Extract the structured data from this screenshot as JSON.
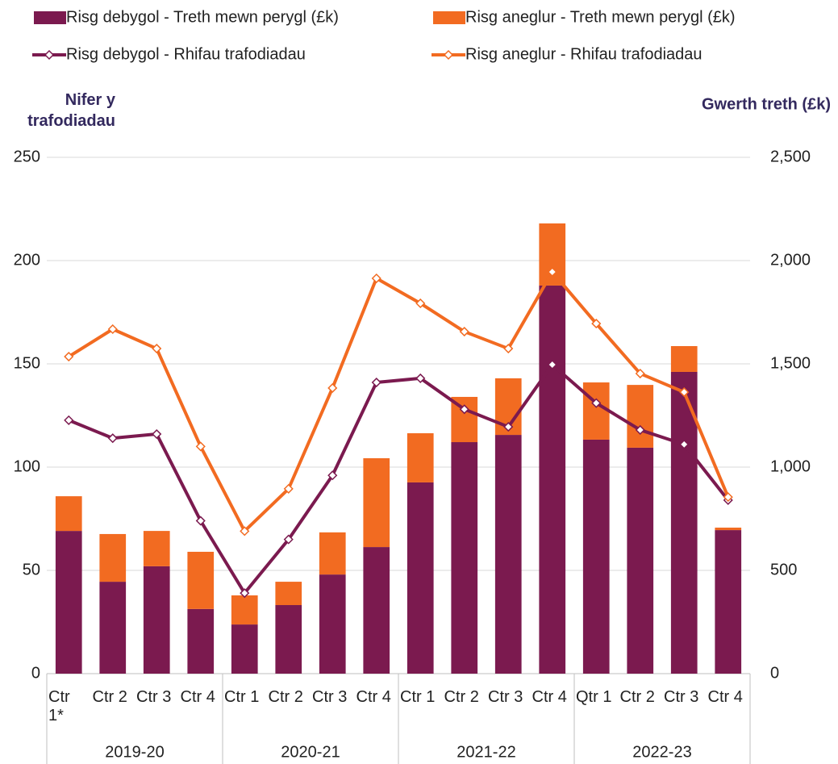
{
  "chart_data": {
    "type": "combo",
    "y_title": "Nifer y trafodiadau",
    "y2_title": "Gwerth treth (£k)",
    "groups": [
      {
        "name": "2019-20",
        "categories": [
          "Ctr 1*",
          "Ctr 2",
          "Ctr 3",
          "Ctr 4"
        ]
      },
      {
        "name": "2020-21",
        "categories": [
          "Ctr 1",
          "Ctr 2",
          "Ctr 3",
          "Ctr 4"
        ]
      },
      {
        "name": "2021-22",
        "categories": [
          "Ctr 1",
          "Ctr 2",
          "Ctr 3",
          "Ctr 4"
        ]
      },
      {
        "name": "2022-23",
        "categories": [
          "Qtr 1",
          "Ctr 2",
          "Ctr 3",
          "Ctr 4"
        ]
      }
    ],
    "series": [
      {
        "name": "Risg debygol - Treth mewn perygl (£k)",
        "type": "bar",
        "axis": "y2",
        "color": "#7b1a4f",
        "values": [
          691,
          445,
          520,
          313,
          238,
          332,
          480,
          613,
          926,
          1121,
          1156,
          1879,
          1133,
          1094,
          1461,
          695
        ]
      },
      {
        "name": "Risg aneglur - Treth mewn perygl (£k)",
        "type": "bar",
        "axis": "y2",
        "color": "#f26b21",
        "values": [
          168,
          231,
          171,
          277,
          141,
          113,
          204,
          430,
          238,
          219,
          274,
          301,
          277,
          304,
          125,
          12
        ]
      },
      {
        "name": "Risg debygol - Rhifau trafodiadau",
        "type": "line",
        "axis": "y",
        "color": "#7b1a4f",
        "values": [
          122.7,
          114,
          116,
          74,
          39,
          65,
          96,
          141,
          143,
          128,
          119.5,
          149.6,
          131,
          118,
          111,
          84
        ]
      },
      {
        "name": "Risg aneglur - Rhifau trafodiadau",
        "type": "line",
        "axis": "y",
        "color": "#f26b21",
        "values": [
          153.5,
          166.8,
          157.4,
          110,
          69,
          89.5,
          138.3,
          191.4,
          179.3,
          165.6,
          157.4,
          194.5,
          169.5,
          145.3,
          136.3,
          85.5
        ]
      }
    ],
    "ylim": [
      0,
      250
    ],
    "yticks": [
      0,
      50,
      100,
      150,
      200,
      250
    ],
    "y2lim": [
      0,
      2500
    ],
    "y2ticks": [
      0,
      500,
      {
        "value": 1000,
        "label": "1,000"
      },
      {
        "value": 1500,
        "label": "1,500"
      },
      {
        "value": 2000,
        "label": "2,000"
      },
      {
        "value": 2500,
        "label": "2,500"
      }
    ],
    "grid": true
  }
}
